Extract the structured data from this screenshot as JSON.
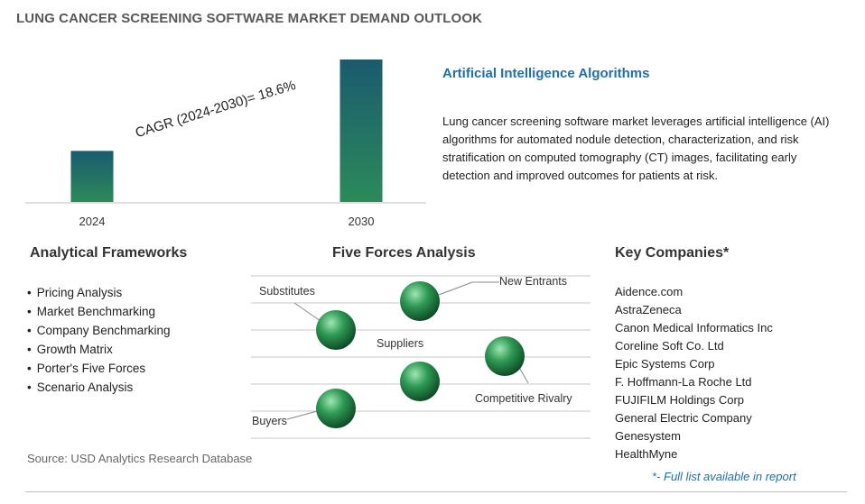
{
  "title": "LUNG CANCER SCREENING SOFTWARE MARKET DEMAND OUTLOOK",
  "chart_data": {
    "type": "bar",
    "categories": [
      "2024",
      "2030"
    ],
    "values": [
      1,
      2.79
    ],
    "annotation": "CAGR (2024-2030)=  18.6%"
  },
  "ai_section": {
    "heading": "Artificial Intelligence Algorithms",
    "text": "Lung cancer screening software market leverages artificial intelligence (AI) algorithms for automated nodule detection, characterization, and risk stratification on computed tomography (CT) images, facilitating early detection and improved outcomes for patients at risk."
  },
  "frameworks": {
    "title": "Analytical Frameworks",
    "items": [
      "Pricing Analysis",
      "Market Benchmarking",
      "Company Benchmarking",
      "Growth Matrix",
      "Porter's Five Forces",
      "Scenario Analysis"
    ]
  },
  "five_forces": {
    "title": "Five Forces Analysis",
    "labels": {
      "substitutes": "Substitutes",
      "new_entrants": "New Entrants",
      "suppliers": "Suppliers",
      "competitive_rivalry": "Competitive Rivalry",
      "buyers": "Buyers"
    },
    "colors": {
      "sphere_light": "#9fe6b4",
      "sphere_mid": "#2e9a55",
      "sphere_dark": "#0d4a24"
    }
  },
  "key_companies": {
    "title": "Key Companies*",
    "items": [
      "Aidence.com",
      "AstraZeneca",
      "Canon Medical Informatics Inc",
      "Coreline Soft Co. Ltd",
      "Epic Systems Corp",
      "F. Hoffmann-La Roche Ltd",
      "FUJIFILM Holdings Corp",
      "General Electric Company",
      "Genesystem",
      "HealthMyne"
    ],
    "note": "*- Full list available in report"
  },
  "source": "Source: USD Analytics Research Database",
  "colors": {
    "bar_top": "#1a5a6e",
    "bar_bottom": "#2c8a5a",
    "accent": "#1f6fb0"
  }
}
